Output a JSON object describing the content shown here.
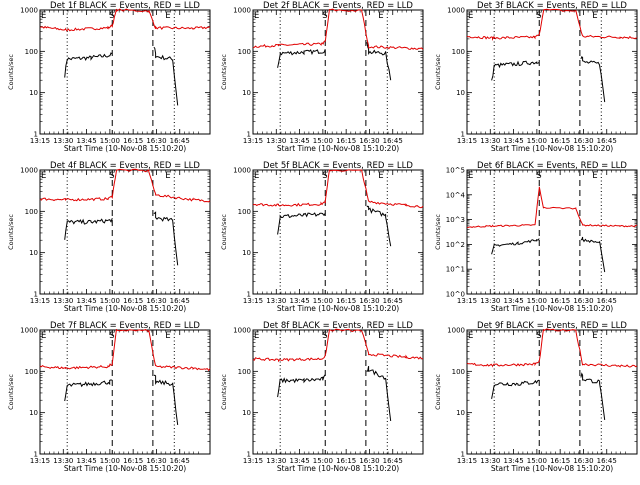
{
  "x_tick_labels": [
    "13:15",
    "13:30",
    "13:45",
    "15:00",
    "16:15",
    "16:30",
    "16:45"
  ],
  "x_axis_label": "Start Time (10-Nov-08 15:10:20)",
  "y_axis_label": "Counts/sec",
  "markers": {
    "start": "E",
    "middle": "S",
    "end": "E"
  },
  "colors": {
    "events": "#000000",
    "lld": "#e00000",
    "axes": "#000000",
    "background": "#ffffff"
  },
  "chart_data": [
    {
      "type": "line",
      "title": "Det 1f BLACK = Events, RED = LLD",
      "ylabel": "Counts/sec",
      "xlabel": "Start Time (10-Nov-08 15:10:20)",
      "ylog": true,
      "ylim": [
        1,
        1000
      ],
      "y_ticks": [
        "1",
        "10",
        "100",
        "1000"
      ],
      "x_ticks": [
        "13:15",
        "13:30",
        "13:45",
        "15:00",
        "16:15",
        "16:30",
        "16:45"
      ],
      "markers": [
        "E",
        "S",
        "E"
      ],
      "series": [
        {
          "name": "Events",
          "color": "#000000",
          "levels": [
            65,
            70,
            80,
            85,
            200,
            75,
            65,
            5
          ]
        },
        {
          "name": "LLD",
          "color": "#e00000",
          "levels": [
            390,
            330,
            370,
            420,
            1000,
            370,
            360,
            380
          ]
        }
      ]
    },
    {
      "type": "line",
      "title": "Det 2f BLACK = Events, RED = LLD",
      "ylabel": "Counts/sec",
      "xlabel": "Start Time (10-Nov-08 15:10:20)",
      "ylog": true,
      "ylim": [
        1,
        1000
      ],
      "y_ticks": [
        "1",
        "10",
        "100",
        "1000"
      ],
      "x_ticks": [
        "13:15",
        "13:30",
        "13:45",
        "15:00",
        "16:15",
        "16:30",
        "16:45"
      ],
      "markers": [
        "E",
        "S",
        "E"
      ],
      "series": [
        {
          "name": "Events",
          "color": "#000000",
          "levels": [
            90,
            95,
            100,
            110,
            250,
            95,
            90,
            20
          ]
        },
        {
          "name": "LLD",
          "color": "#e00000",
          "levels": [
            130,
            140,
            150,
            170,
            1000,
            130,
            120,
            115
          ]
        }
      ]
    },
    {
      "type": "line",
      "title": "Det 3f BLACK = Events, RED = LLD",
      "ylabel": "Counts/sec",
      "xlabel": "Start Time (10-Nov-08 15:10:20)",
      "ylog": true,
      "ylim": [
        1,
        1000
      ],
      "y_ticks": [
        "1",
        "10",
        "100",
        "1000"
      ],
      "x_ticks": [
        "13:15",
        "13:30",
        "13:45",
        "15:00",
        "16:15",
        "16:30",
        "16:45"
      ],
      "markers": [
        "E",
        "S",
        "E"
      ],
      "series": [
        {
          "name": "Events",
          "color": "#000000",
          "levels": [
            45,
            50,
            55,
            60,
            120,
            55,
            50,
            6
          ]
        },
        {
          "name": "LLD",
          "color": "#e00000",
          "levels": [
            230,
            210,
            220,
            250,
            1000,
            230,
            220,
            215
          ]
        }
      ]
    },
    {
      "type": "line",
      "title": "Det 4f BLACK = Events, RED = LLD",
      "ylabel": "Counts/sec",
      "xlabel": "Start Time (10-Nov-08 15:10:20)",
      "ylog": true,
      "ylim": [
        1,
        1000
      ],
      "y_ticks": [
        "1",
        "10",
        "100",
        "1000"
      ],
      "x_ticks": [
        "13:15",
        "13:30",
        "13:45",
        "15:00",
        "16:15",
        "16:30",
        "16:45"
      ],
      "markers": [
        "E",
        "S",
        "E"
      ],
      "series": [
        {
          "name": "Events",
          "color": "#000000",
          "levels": [
            55,
            55,
            60,
            65,
            130,
            70,
            60,
            5
          ]
        },
        {
          "name": "LLD",
          "color": "#e00000",
          "levels": [
            200,
            190,
            200,
            230,
            1000,
            250,
            190,
            180
          ]
        }
      ]
    },
    {
      "type": "line",
      "title": "Det 5f BLACK = Events, RED = LLD",
      "ylabel": "Counts/sec",
      "xlabel": "Start Time (10-Nov-08 15:10:20)",
      "ylog": true,
      "ylim": [
        1,
        1000
      ],
      "y_ticks": [
        "1",
        "10",
        "100",
        "1000"
      ],
      "x_ticks": [
        "13:15",
        "13:30",
        "13:45",
        "15:00",
        "16:15",
        "16:30",
        "16:45"
      ],
      "markers": [
        "E",
        "S",
        "E"
      ],
      "series": [
        {
          "name": "Events",
          "color": "#000000",
          "levels": [
            75,
            80,
            85,
            95,
            200,
            110,
            80,
            15
          ]
        },
        {
          "name": "LLD",
          "color": "#e00000",
          "levels": [
            150,
            140,
            150,
            170,
            1000,
            170,
            140,
            130
          ]
        }
      ]
    },
    {
      "type": "line",
      "title": "Det 6f BLACK = Events, RED = LLD",
      "ylabel": "Counts/sec",
      "xlabel": "Start Time (10-Nov-08 15:10:20)",
      "ylog": true,
      "ylim": [
        1,
        100000
      ],
      "y_ticks": [
        "10^0",
        "10^1",
        "10^2",
        "10^3",
        "10^4",
        "10^5"
      ],
      "x_ticks": [
        "13:15",
        "13:30",
        "13:45",
        "15:00",
        "16:15",
        "16:30",
        "16:45"
      ],
      "markers": [
        "E",
        "S",
        "E"
      ],
      "series": [
        {
          "name": "Events",
          "color": "#000000",
          "levels": [
            90,
            110,
            150,
            180,
            250,
            150,
            120,
            7
          ]
        },
        {
          "name": "LLD",
          "color": "#e00000",
          "levels": [
            500,
            550,
            600,
            20000,
            3000,
            600,
            550,
            550
          ]
        }
      ]
    },
    {
      "type": "line",
      "title": "Det 7f BLACK = Events, RED = LLD",
      "ylabel": "Counts/sec",
      "xlabel": "Start Time (10-Nov-08 15:10:20)",
      "ylog": true,
      "ylim": [
        1,
        1000
      ],
      "y_ticks": [
        "1",
        "10",
        "100",
        "1000"
      ],
      "x_ticks": [
        "13:15",
        "13:30",
        "13:45",
        "15:00",
        "16:15",
        "16:30",
        "16:45"
      ],
      "markers": [
        "E",
        "S",
        "E"
      ],
      "series": [
        {
          "name": "Events",
          "color": "#000000",
          "levels": [
            45,
            50,
            55,
            60,
            120,
            55,
            50,
            5
          ]
        },
        {
          "name": "LLD",
          "color": "#e00000",
          "levels": [
            130,
            120,
            130,
            150,
            1000,
            130,
            120,
            110
          ]
        }
      ]
    },
    {
      "type": "line",
      "title": "Det 8f BLACK = Events, RED = LLD",
      "ylabel": "Counts/sec",
      "xlabel": "Start Time (10-Nov-08 15:10:20)",
      "ylog": true,
      "ylim": [
        1,
        1000
      ],
      "y_ticks": [
        "1",
        "10",
        "100",
        "1000"
      ],
      "x_ticks": [
        "13:15",
        "13:30",
        "13:45",
        "15:00",
        "16:15",
        "16:30",
        "16:45"
      ],
      "markers": [
        "E",
        "S",
        "E"
      ],
      "series": [
        {
          "name": "Events",
          "color": "#000000",
          "levels": [
            60,
            60,
            65,
            75,
            150,
            110,
            70,
            6
          ]
        },
        {
          "name": "LLD",
          "color": "#e00000",
          "levels": [
            200,
            190,
            200,
            230,
            1000,
            260,
            220,
            210
          ]
        }
      ]
    },
    {
      "type": "line",
      "title": "Det 9f BLACK = Events, RED = LLD",
      "ylabel": "Counts/sec",
      "xlabel": "Start Time (10-Nov-08 15:10:20)",
      "ylog": true,
      "ylim": [
        1,
        1000
      ],
      "y_ticks": [
        "1",
        "10",
        "100",
        "1000"
      ],
      "x_ticks": [
        "13:15",
        "13:30",
        "13:45",
        "15:00",
        "16:15",
        "16:30",
        "16:45"
      ],
      "markers": [
        "E",
        "S",
        "E"
      ],
      "series": [
        {
          "name": "Events",
          "color": "#000000",
          "levels": [
            50,
            50,
            55,
            60,
            130,
            65,
            55,
            6
          ]
        },
        {
          "name": "LLD",
          "color": "#e00000",
          "levels": [
            150,
            140,
            150,
            170,
            1000,
            150,
            135,
            130
          ]
        }
      ]
    }
  ]
}
